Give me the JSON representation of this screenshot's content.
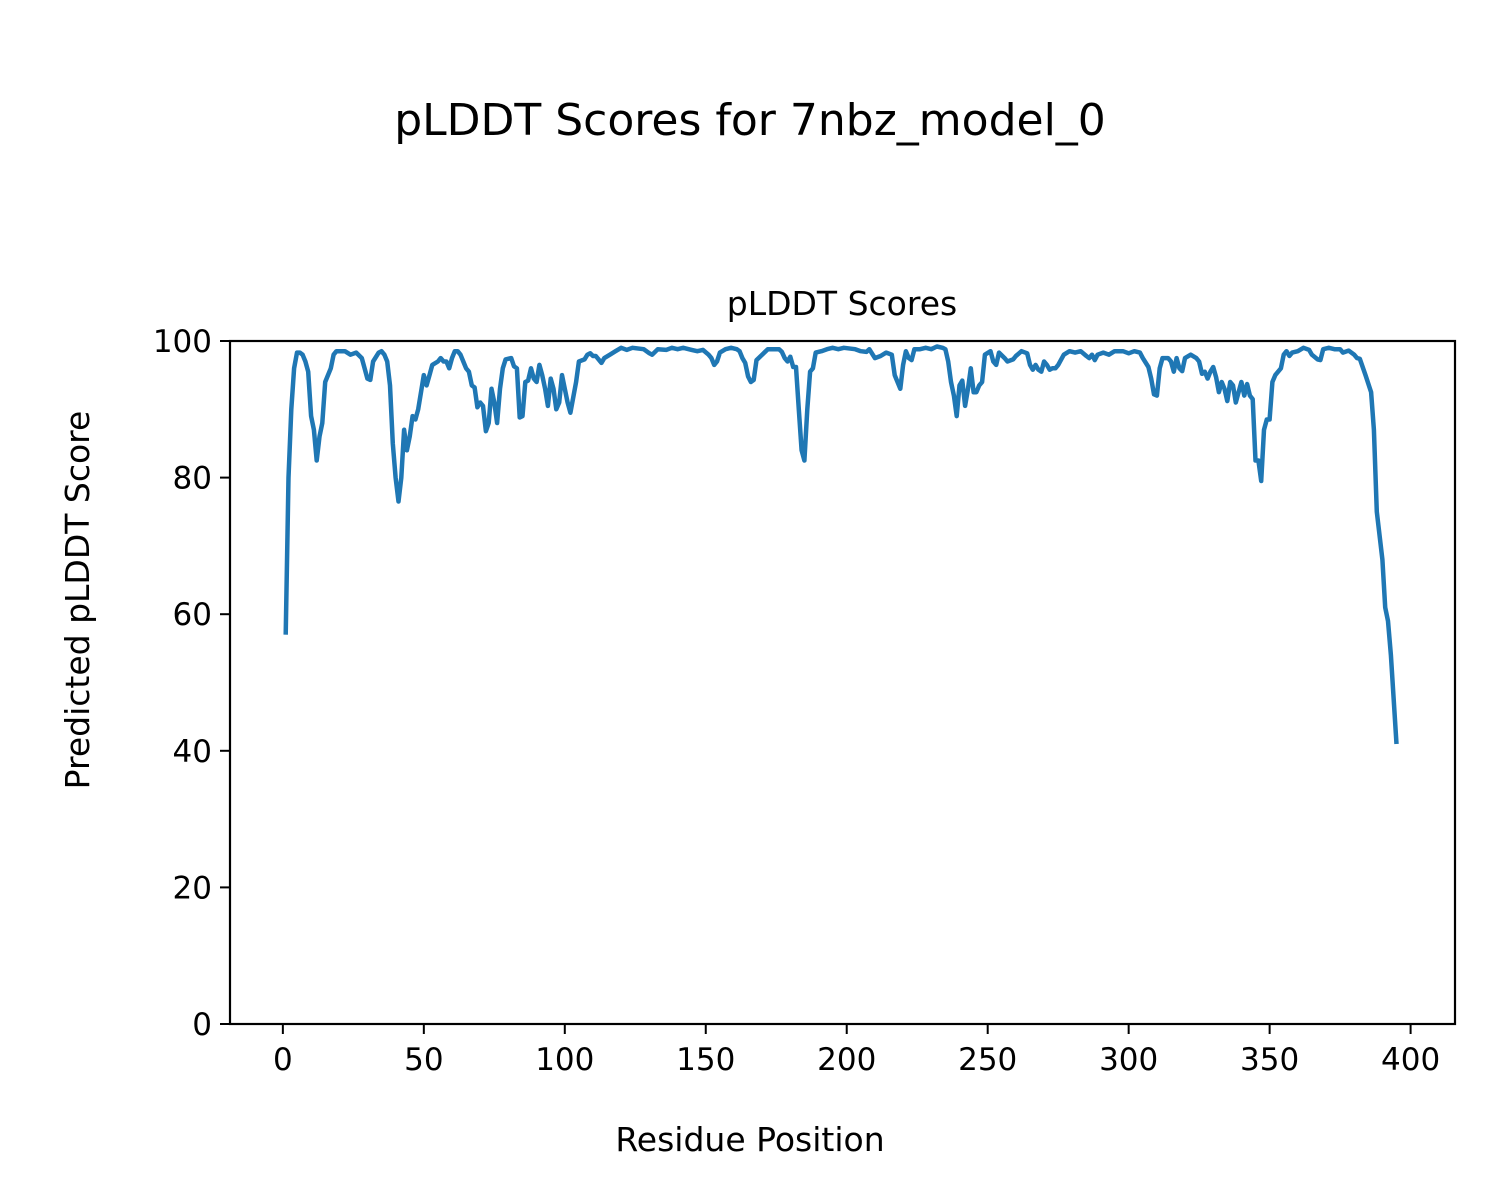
{
  "chart_data": {
    "type": "line",
    "suptitle": "pLDDT Scores for 7nbz_model_0",
    "title": "pLDDT Scores",
    "xlabel": "Residue Position",
    "ylabel": "Predicted pLDDT Score",
    "xlim": [
      -18.75,
      415.75
    ],
    "ylim": [
      0,
      100
    ],
    "xticks": [
      0,
      50,
      100,
      150,
      200,
      250,
      300,
      350,
      400
    ],
    "yticks": [
      0,
      20,
      40,
      60,
      80,
      100
    ],
    "grid": false,
    "line_color": "#1f77b4",
    "series": [
      {
        "name": "pLDDT",
        "points": [
          [
            1,
            57
          ],
          [
            2,
            80
          ],
          [
            3,
            90
          ],
          [
            4,
            96
          ],
          [
            5,
            98.3
          ],
          [
            6,
            98.3
          ],
          [
            7,
            98
          ],
          [
            8,
            97
          ],
          [
            9,
            95.5
          ],
          [
            10,
            89
          ],
          [
            11,
            87
          ],
          [
            12,
            82.5
          ],
          [
            13,
            86
          ],
          [
            14,
            88
          ],
          [
            15,
            94
          ],
          [
            16,
            95
          ],
          [
            17,
            96
          ],
          [
            18,
            98
          ],
          [
            19,
            98.5
          ],
          [
            22,
            98.5
          ],
          [
            24,
            98
          ],
          [
            26,
            98.3
          ],
          [
            28,
            97.5
          ],
          [
            29,
            96
          ],
          [
            30,
            94.5
          ],
          [
            31,
            94.3
          ],
          [
            32,
            97
          ],
          [
            34,
            98.3
          ],
          [
            35,
            98.5
          ],
          [
            36,
            98
          ],
          [
            37,
            97
          ],
          [
            38,
            93.5
          ],
          [
            39,
            85
          ],
          [
            40,
            80
          ],
          [
            41,
            76.5
          ],
          [
            42,
            80
          ],
          [
            43,
            87
          ],
          [
            44,
            84
          ],
          [
            45,
            86
          ],
          [
            46,
            89
          ],
          [
            47,
            88.5
          ],
          [
            48,
            90
          ],
          [
            49,
            92.5
          ],
          [
            50,
            95
          ],
          [
            51,
            93.5
          ],
          [
            52,
            95
          ],
          [
            53,
            96.5
          ],
          [
            55,
            97
          ],
          [
            56,
            97.5
          ],
          [
            57,
            97
          ],
          [
            58,
            97
          ],
          [
            59,
            96
          ],
          [
            60,
            97.5
          ],
          [
            61,
            98.5
          ],
          [
            62,
            98.5
          ],
          [
            63,
            98
          ],
          [
            64,
            97
          ],
          [
            65,
            96
          ],
          [
            66,
            95.5
          ],
          [
            67,
            93.5
          ],
          [
            68,
            93.2
          ],
          [
            69,
            90.3
          ],
          [
            70,
            91
          ],
          [
            71,
            90.5
          ],
          [
            72,
            86.8
          ],
          [
            73,
            88
          ],
          [
            74,
            93
          ],
          [
            75,
            91
          ],
          [
            76,
            88
          ],
          [
            77,
            93
          ],
          [
            78,
            96
          ],
          [
            79,
            97.3
          ],
          [
            81,
            97.5
          ],
          [
            82,
            96.3
          ],
          [
            83,
            96
          ],
          [
            84,
            88.8
          ],
          [
            85,
            89
          ],
          [
            86,
            94
          ],
          [
            87,
            94.2
          ],
          [
            88,
            96
          ],
          [
            89,
            94.5
          ],
          [
            90,
            94
          ],
          [
            91,
            96.5
          ],
          [
            92,
            95
          ],
          [
            93,
            93
          ],
          [
            94,
            90.5
          ],
          [
            95,
            94.5
          ],
          [
            96,
            93
          ],
          [
            97,
            90
          ],
          [
            98,
            91
          ],
          [
            99,
            95
          ],
          [
            100,
            93
          ],
          [
            101,
            91
          ],
          [
            102,
            89.5
          ],
          [
            104,
            94
          ],
          [
            105,
            97
          ],
          [
            107,
            97.3
          ],
          [
            108,
            98
          ],
          [
            109,
            98.2
          ],
          [
            110,
            97.8
          ],
          [
            111,
            97.8
          ],
          [
            112,
            97.3
          ],
          [
            113,
            96.8
          ],
          [
            114,
            97.5
          ],
          [
            116,
            98
          ],
          [
            118,
            98.5
          ],
          [
            120,
            99
          ],
          [
            122,
            98.7
          ],
          [
            124,
            99
          ],
          [
            128,
            98.8
          ],
          [
            130,
            98.2
          ],
          [
            131,
            98
          ],
          [
            133,
            98.8
          ],
          [
            136,
            98.7
          ],
          [
            138,
            99
          ],
          [
            140,
            98.8
          ],
          [
            142,
            99
          ],
          [
            145,
            98.7
          ],
          [
            147,
            98.5
          ],
          [
            149,
            98.7
          ],
          [
            151,
            98
          ],
          [
            152,
            97.5
          ],
          [
            153,
            96.5
          ],
          [
            154,
            97
          ],
          [
            155,
            98.3
          ],
          [
            157,
            98.8
          ],
          [
            159,
            99
          ],
          [
            161,
            98.8
          ],
          [
            162,
            98.5
          ],
          [
            163,
            97.5
          ],
          [
            164,
            96.8
          ],
          [
            165,
            94.8
          ],
          [
            166,
            94
          ],
          [
            167,
            94.3
          ],
          [
            168,
            97.2
          ],
          [
            170,
            98
          ],
          [
            172,
            98.8
          ],
          [
            176,
            98.8
          ],
          [
            177,
            98.4
          ],
          [
            178,
            97.5
          ],
          [
            179,
            97
          ],
          [
            180,
            97.7
          ],
          [
            181,
            96.2
          ],
          [
            182,
            96.2
          ],
          [
            183,
            90
          ],
          [
            184,
            84
          ],
          [
            185,
            82.5
          ],
          [
            186,
            90
          ],
          [
            187,
            95.5
          ],
          [
            188,
            96
          ],
          [
            189,
            98.3
          ],
          [
            191,
            98.5
          ],
          [
            193,
            98.8
          ],
          [
            195,
            99
          ],
          [
            197,
            98.8
          ],
          [
            199,
            99
          ],
          [
            203,
            98.8
          ],
          [
            205,
            98.5
          ],
          [
            207,
            98.4
          ],
          [
            208,
            98.8
          ],
          [
            210,
            97.5
          ],
          [
            212,
            97.8
          ],
          [
            214,
            98.3
          ],
          [
            216,
            98
          ],
          [
            217,
            95
          ],
          [
            219,
            93
          ],
          [
            220,
            96.5
          ],
          [
            221,
            98.5
          ],
          [
            222,
            97.5
          ],
          [
            223,
            97.2
          ],
          [
            224,
            98.8
          ],
          [
            226,
            98.8
          ],
          [
            228,
            99
          ],
          [
            230,
            98.8
          ],
          [
            232,
            99.2
          ],
          [
            234,
            99
          ],
          [
            235,
            98.8
          ],
          [
            236,
            97
          ],
          [
            237,
            94
          ],
          [
            238,
            92
          ],
          [
            239,
            89
          ],
          [
            240,
            93.5
          ],
          [
            241,
            94.2
          ],
          [
            242,
            90.5
          ],
          [
            243,
            93
          ],
          [
            244,
            96
          ],
          [
            245,
            92.5
          ],
          [
            246,
            92.5
          ],
          [
            247,
            93.5
          ],
          [
            248,
            94
          ],
          [
            249,
            98
          ],
          [
            251,
            98.5
          ],
          [
            252,
            97
          ],
          [
            253,
            96.5
          ],
          [
            254,
            98.3
          ],
          [
            256,
            97.5
          ],
          [
            257,
            97
          ],
          [
            259,
            97.3
          ],
          [
            260,
            97.8
          ],
          [
            262,
            98.5
          ],
          [
            264,
            98.2
          ],
          [
            265,
            96.5
          ],
          [
            266,
            95.8
          ],
          [
            267,
            96.5
          ],
          [
            268,
            95.8
          ],
          [
            269,
            95.5
          ],
          [
            270,
            97
          ],
          [
            271,
            96.5
          ],
          [
            272,
            95.8
          ],
          [
            273,
            96
          ],
          [
            274,
            96
          ],
          [
            275,
            96.5
          ],
          [
            277,
            98
          ],
          [
            279,
            98.5
          ],
          [
            281,
            98.3
          ],
          [
            283,
            98.5
          ],
          [
            285,
            97.8
          ],
          [
            286,
            97.5
          ],
          [
            287,
            98
          ],
          [
            288,
            97.2
          ],
          [
            289,
            98
          ],
          [
            291,
            98.3
          ],
          [
            293,
            98
          ],
          [
            295,
            98.5
          ],
          [
            298,
            98.5
          ],
          [
            300,
            98.2
          ],
          [
            302,
            98.5
          ],
          [
            304,
            98.3
          ],
          [
            305,
            97.5
          ],
          [
            307,
            96.2
          ],
          [
            308,
            94.5
          ],
          [
            309,
            92.2
          ],
          [
            310,
            92
          ],
          [
            311,
            96
          ],
          [
            312,
            97.5
          ],
          [
            314,
            97.5
          ],
          [
            315,
            97
          ],
          [
            316,
            95.5
          ],
          [
            317,
            97.5
          ],
          [
            318,
            96
          ],
          [
            319,
            95.6
          ],
          [
            320,
            97.5
          ],
          [
            322,
            98
          ],
          [
            324,
            97.5
          ],
          [
            325,
            97
          ],
          [
            326,
            95.2
          ],
          [
            327,
            95.5
          ],
          [
            328,
            94.5
          ],
          [
            329,
            95.5
          ],
          [
            330,
            96.2
          ],
          [
            331,
            94.7
          ],
          [
            332,
            92.5
          ],
          [
            333,
            94
          ],
          [
            334,
            93
          ],
          [
            335,
            91.2
          ],
          [
            336,
            94
          ],
          [
            337,
            93.5
          ],
          [
            338,
            91
          ],
          [
            339,
            92.5
          ],
          [
            340,
            94
          ],
          [
            341,
            92
          ],
          [
            342,
            93.7
          ],
          [
            343,
            92
          ],
          [
            344,
            91.5
          ],
          [
            345,
            82.5
          ],
          [
            346,
            82.5
          ],
          [
            347,
            79.5
          ],
          [
            348,
            87
          ],
          [
            349,
            88.5
          ],
          [
            350,
            88.5
          ],
          [
            351,
            94
          ],
          [
            352,
            95
          ],
          [
            354,
            96
          ],
          [
            355,
            98
          ],
          [
            356,
            98.5
          ],
          [
            357,
            97.8
          ],
          [
            358,
            98.3
          ],
          [
            360,
            98.5
          ],
          [
            362,
            99
          ],
          [
            364,
            98.7
          ],
          [
            365,
            98
          ],
          [
            367,
            97.3
          ],
          [
            368,
            97.2
          ],
          [
            369,
            98.8
          ],
          [
            371,
            99
          ],
          [
            373,
            98.8
          ],
          [
            375,
            98.8
          ],
          [
            376,
            98.3
          ],
          [
            378,
            98.6
          ],
          [
            380,
            98
          ],
          [
            381,
            97.5
          ],
          [
            382,
            97.4
          ],
          [
            384,
            95
          ],
          [
            386,
            92.5
          ],
          [
            387,
            87
          ],
          [
            388,
            75
          ],
          [
            390,
            68
          ],
          [
            391,
            61
          ],
          [
            392,
            59
          ],
          [
            393,
            54
          ],
          [
            395,
            41
          ]
        ]
      }
    ]
  }
}
